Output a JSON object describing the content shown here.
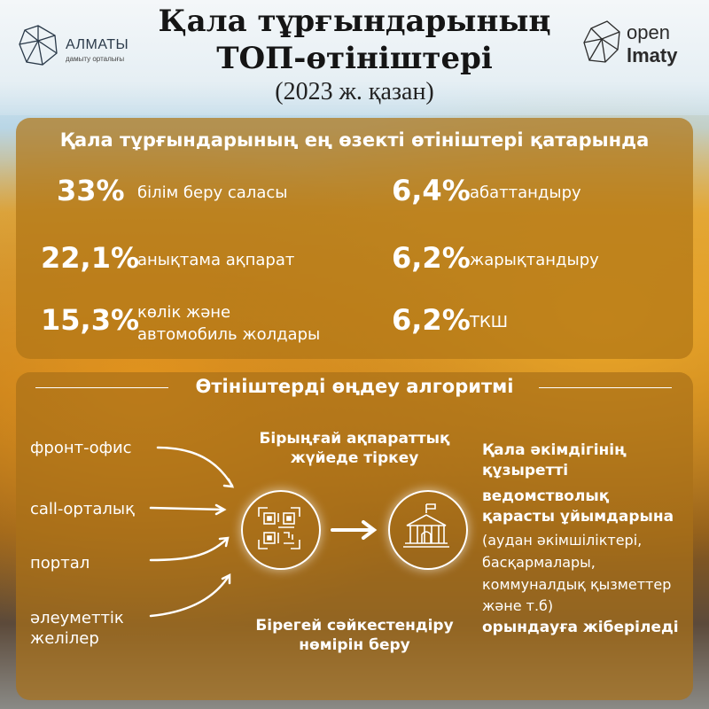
{
  "header": {
    "title_line1": "Қала тұрғындарының",
    "title_line2": "ТОП-өтініштері",
    "subtitle": "(2023 ж. қазан)"
  },
  "logo_left": {
    "name": "АЛМАТЫ",
    "tagline": "дамыту орталығы"
  },
  "logo_right": {
    "line1": "open",
    "line2": "lmaty"
  },
  "top_requests": {
    "title": "Қала тұрғындарының ең өзекті өтініштері қатарында",
    "items": [
      {
        "percent": "33%",
        "label": "білім беру саласы"
      },
      {
        "percent": "22,1%",
        "label": "анықтама ақпарат"
      },
      {
        "percent": "15,3%",
        "label_line1": "көлік және",
        "label_line2": "автомобиль жолдары"
      },
      {
        "percent": "6,4%",
        "label": "абаттандыру"
      },
      {
        "percent": "6,2%",
        "label": "жарықтандыру"
      },
      {
        "percent": "6,2%",
        "label": "ТКШ"
      }
    ]
  },
  "algorithm": {
    "title": "Өтініштерді өңдеу алгоритмі",
    "sources": [
      "фронт-офис",
      "call-орталық",
      "портал",
      "әлеуметтік",
      "желілер"
    ],
    "register_line1": "Бірыңғай ақпараттық",
    "register_line2": "жүйеде тіркеу",
    "number_line1": "Бірегей сәйкестендіру",
    "number_line2": "нөмірін беру",
    "dest_bold": [
      "Қала әкімдігінің",
      "құзыретті",
      "ведомстволық",
      "қарасты ұйымдарына"
    ],
    "dest_normal": [
      "(аудан әкімшіліктері,",
      "басқармалары,",
      "коммуналдық қызметтер",
      "және т.б)"
    ],
    "dest_final": "орындауға жіберіледі"
  },
  "colors": {
    "panel": "#b07616",
    "text": "#ffffff",
    "title": "#151515"
  },
  "icons": [
    "qr-code-icon",
    "government-building-icon",
    "arrow-right-icon"
  ]
}
